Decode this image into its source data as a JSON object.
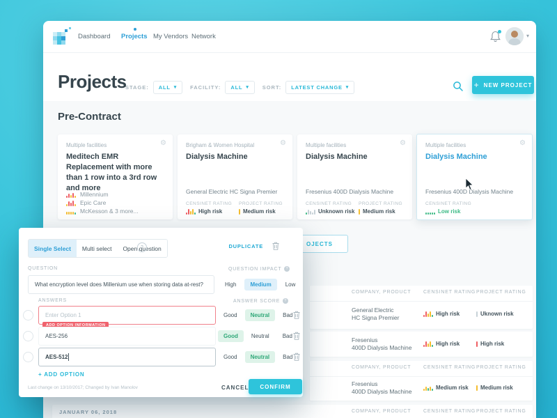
{
  "colors": {
    "accent_cyan": "#2ec4db",
    "link_blue": "#2e9fd6",
    "dark_text": "#36454d",
    "red": "#ef5e62",
    "yellow": "#f5bd2e",
    "green": "#3cba85",
    "gray_bar": "#c7d1d7"
  },
  "icons": {
    "plus": "+",
    "chevron_down": "▾",
    "gear": "⚙",
    "help": "?"
  },
  "nav": {
    "items": [
      {
        "label": "Dashboard"
      },
      {
        "label": "Projects"
      },
      {
        "label": "My Vendors"
      },
      {
        "label": "Network"
      }
    ],
    "active": "Projects"
  },
  "page": {
    "title": "Projects"
  },
  "filters": {
    "stage_label": "STAGE:",
    "stage_value": "ALL",
    "facility_label": "FACILITY:",
    "facility_value": "ALL",
    "sort_label": "SORT:",
    "sort_value": "LATEST CHANGE"
  },
  "actions": {
    "new_project": "NEW PROJECT"
  },
  "section": {
    "title": "Pre-Contract"
  },
  "cards": [
    {
      "facility": "Multiple facilities",
      "title": "Meditech EMR Replacement with more than 1 row into a 3rd row and more",
      "vendors": [
        {
          "name": "Millennium"
        },
        {
          "name": "Epic Care"
        },
        {
          "name": "McKesson & 3 more..."
        }
      ]
    },
    {
      "facility": "Brigham & Women Hospital",
      "title": "Dialysis Machine",
      "product": "General Electric HC Signa Premier",
      "censinet_label": "CENSINET RATING",
      "censinet_value": "High risk",
      "project_label": "PROJECT RATING",
      "project_value": "Medium risk"
    },
    {
      "facility": "Multiple facilities",
      "title": "Dialysis Machine",
      "product": "Fresenius 400D Dialysis Machine",
      "censinet_label": "CENSINET RATING",
      "censinet_value": "Unknown risk",
      "project_label": "PROJECT RATING",
      "project_value": "Medium risk"
    },
    {
      "facility": "Multiple facilities",
      "title": "Dialysis Machine",
      "product": "Fresenius 400D Dialysis Machine",
      "censinet_label": "CENSINET RATING",
      "censinet_value": "Low risk"
    }
  ],
  "table": {
    "button_fragment": "OJECTS",
    "headers": {
      "company": "COMPANY, PRODUCT",
      "censinet": "CENSINET RATING",
      "project": "PROJECT RATING"
    },
    "date_heading": "JANUARY 06, 2018",
    "bands": [
      {
        "row": {
          "company_line1": "General Electric",
          "company_line2": "HC Signa Premier",
          "censinet": "High risk",
          "project": "Uknown risk"
        }
      },
      {
        "row": {
          "company_line1": "Fresenius",
          "company_line2": "400D Dialysis Machine",
          "censinet": "High risk",
          "project": "High risk"
        }
      },
      {
        "row": {
          "company_line1": "Fresenius",
          "company_line2": "400D Dialysis Machine",
          "censinet": "Medium risk",
          "project": "Medium risk"
        }
      }
    ]
  },
  "modal": {
    "tabs": [
      {
        "label": "Single Select"
      },
      {
        "label": "Multi select"
      },
      {
        "label": "Open question"
      }
    ],
    "active_tab": "Single Select",
    "duplicate": "DUPLICATE",
    "question_label": "QUESTION",
    "question_value": "What encryption level does Millenium use when storing data at-rest?",
    "impact_label": "QUESTION IMPACT",
    "impact_options": [
      "High",
      "Medium",
      "Low"
    ],
    "impact_selected": "Medium",
    "answers_label": "ANSWERS",
    "score_label": "ANSWER SCORE",
    "score_options": [
      "Good",
      "Neutral",
      "Bad"
    ],
    "answers": [
      {
        "value": "",
        "placeholder": "Enter Option 1",
        "score": "Neutral",
        "error": "ADD OPTION INFORMATION"
      },
      {
        "value": "AES-256",
        "placeholder": "",
        "score": "Good"
      },
      {
        "value": "AES-512",
        "placeholder": "",
        "score": "Neutral",
        "focused": true
      }
    ],
    "add_option": "ADD OPTION",
    "footer_note": "Last change on 13/10/2017; Changed by Ivan Manolov",
    "cancel": "CANCEL",
    "confirm": "CONFIRM"
  },
  "bars": {
    "high": [
      {
        "h": 3,
        "c": "#ef5e62"
      },
      {
        "h": 8,
        "c": "#ef5e62"
      },
      {
        "h": 5,
        "c": "#f5bd2e"
      },
      {
        "h": 8,
        "c": "#f5bd2e"
      },
      {
        "h": 3,
        "c": "#3cba85"
      }
    ],
    "medium": [
      {
        "h": 3,
        "c": "#f5bd2e"
      },
      {
        "h": 6,
        "c": "#f5bd2e"
      },
      {
        "h": 4,
        "c": "#3cba85"
      },
      {
        "h": 6,
        "c": "#f5bd2e"
      },
      {
        "h": 3,
        "c": "#3cba85"
      }
    ],
    "unknown": [
      {
        "h": 3,
        "c": "#3cba85"
      },
      {
        "h": 7,
        "c": "#c7d1d7"
      },
      {
        "h": 5,
        "c": "#c7d1d7"
      },
      {
        "h": 3,
        "c": "#c7d1d7"
      },
      {
        "h": 7,
        "c": "#c7d1d7"
      }
    ],
    "low": [
      {
        "h": 3,
        "c": "#3cba85"
      },
      {
        "h": 3,
        "c": "#3cba85"
      },
      {
        "h": 3,
        "c": "#3cba85"
      },
      {
        "h": 3,
        "c": "#3cba85"
      },
      {
        "h": 3,
        "c": "#3cba85"
      }
    ],
    "single_yellow": [
      {
        "h": 8,
        "c": "#f5bd2e"
      }
    ],
    "single_red": [
      {
        "h": 8,
        "c": "#ef5e62"
      }
    ],
    "single_gray": [
      {
        "h": 8,
        "c": "#c7d1d7"
      }
    ],
    "millennium": [
      {
        "h": 3,
        "c": "#ef5e62"
      },
      {
        "h": 6,
        "c": "#ef5e62"
      },
      {
        "h": 4,
        "c": "#f5bd2e"
      },
      {
        "h": 7,
        "c": "#ef5e62"
      },
      {
        "h": 3,
        "c": "#f5bd2e"
      }
    ],
    "epic": [
      {
        "h": 3,
        "c": "#f5bd2e"
      },
      {
        "h": 7,
        "c": "#ef5e62"
      },
      {
        "h": 5,
        "c": "#ef5e62"
      },
      {
        "h": 8,
        "c": "#ef5e62"
      },
      {
        "h": 3,
        "c": "#f5bd2e"
      }
    ],
    "mckesson": [
      {
        "h": 4,
        "c": "#f5bd2e"
      },
      {
        "h": 4,
        "c": "#f5bd2e"
      },
      {
        "h": 4,
        "c": "#f5bd2e"
      },
      {
        "h": 4,
        "c": "#f5bd2e"
      },
      {
        "h": 3,
        "c": "#3cba85"
      }
    ]
  }
}
